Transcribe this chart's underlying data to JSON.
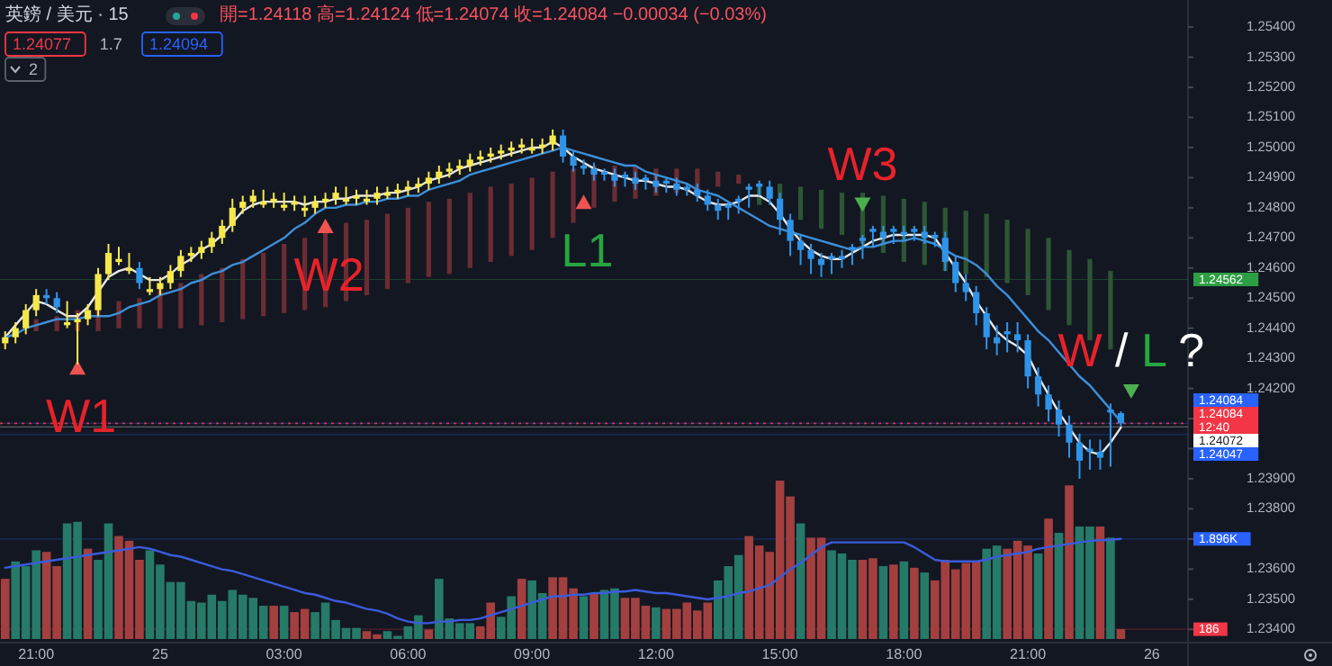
{
  "chart_data": {
    "type": "candlestick",
    "title": "英鎊 / 美元 · 15",
    "subtitle": "開=1.24118 高=1.24124 低=1.24074 收=1.24084 −0.00034 (−0.03%)",
    "categories": [
      null,
      null,
      null,
      "21:00",
      null,
      null,
      null,
      null,
      null,
      null,
      null,
      null,
      null,
      null,
      null,
      "25",
      null,
      null,
      null,
      null,
      null,
      null,
      null,
      null,
      null,
      null,
      null,
      "03:00",
      null,
      null,
      null,
      null,
      null,
      null,
      null,
      null,
      null,
      null,
      null,
      "06:00",
      null,
      null,
      null,
      null,
      null,
      null,
      null,
      null,
      null,
      null,
      null,
      "09:00",
      null,
      null,
      null,
      null,
      null,
      null,
      null,
      null,
      null,
      null,
      null,
      "12:00",
      null,
      null,
      null,
      null,
      null,
      null,
      null,
      null,
      null,
      null,
      null,
      "15:00",
      null,
      null,
      null,
      null,
      null,
      null,
      null,
      null,
      null,
      null,
      null,
      "18:00",
      null,
      null,
      null,
      null,
      null,
      null,
      null,
      null,
      null,
      null,
      null,
      "21:00",
      null,
      null,
      null,
      null,
      null,
      null,
      null,
      null,
      null,
      null,
      null,
      "26",
      null,
      null,
      null
    ],
    "ohlc": [
      [
        1.2435,
        1.2439,
        1.2433,
        1.2437
      ],
      [
        1.2437,
        1.2442,
        1.2435,
        1.244
      ],
      [
        1.244,
        1.2448,
        1.2438,
        1.2446
      ],
      [
        1.2446,
        1.2453,
        1.2444,
        1.2451
      ],
      [
        1.2451,
        1.2453,
        1.2448,
        1.245
      ],
      [
        1.245,
        1.2452,
        1.2445,
        1.2447
      ],
      [
        1.2441,
        1.2449,
        1.244,
        1.2442
      ],
      [
        1.2442,
        1.2445,
        1.2428,
        1.2443
      ],
      [
        1.2443,
        1.2448,
        1.2441,
        1.2446
      ],
      [
        1.2446,
        1.246,
        1.2444,
        1.2458
      ],
      [
        1.2458,
        1.2468,
        1.2456,
        1.2465
      ],
      [
        1.2462,
        1.2467,
        1.2461,
        1.2463
      ],
      [
        1.2459,
        1.2465,
        1.2458,
        1.246
      ],
      [
        1.246,
        1.2462,
        1.2453,
        1.2455
      ],
      [
        1.2452,
        1.2457,
        1.2451,
        1.2453
      ],
      [
        1.2453,
        1.2457,
        1.2451,
        1.2455
      ],
      [
        1.2455,
        1.2461,
        1.2453,
        1.2459
      ],
      [
        1.2459,
        1.2466,
        1.2457,
        1.2464
      ],
      [
        1.2464,
        1.2467,
        1.2462,
        1.2465
      ],
      [
        1.2465,
        1.2469,
        1.2463,
        1.2467
      ],
      [
        1.2467,
        1.2472,
        1.2465,
        1.247
      ],
      [
        1.247,
        1.2476,
        1.2468,
        1.2474
      ],
      [
        1.2474,
        1.2483,
        1.2472,
        1.248
      ],
      [
        1.248,
        1.2484,
        1.2478,
        1.2482
      ],
      [
        1.2482,
        1.2486,
        1.248,
        1.2484
      ],
      [
        1.2481,
        1.2486,
        1.248,
        1.2482
      ],
      [
        1.2482,
        1.2485,
        1.248,
        1.2483
      ],
      [
        1.248,
        1.2485,
        1.2479,
        1.2481
      ],
      [
        1.2481,
        1.2484,
        1.2479,
        1.2482
      ],
      [
        1.2479,
        1.2484,
        1.2477,
        1.248
      ],
      [
        1.248,
        1.2484,
        1.2478,
        1.2482
      ],
      [
        1.2482,
        1.2485,
        1.248,
        1.2483
      ],
      [
        1.2483,
        1.2487,
        1.2481,
        1.2485
      ],
      [
        1.2482,
        1.2487,
        1.2481,
        1.2483
      ],
      [
        1.2483,
        1.2486,
        1.2481,
        1.2484
      ],
      [
        1.2482,
        1.2486,
        1.2481,
        1.2483
      ],
      [
        1.2483,
        1.2487,
        1.2481,
        1.2485
      ],
      [
        1.2484,
        1.2487,
        1.2483,
        1.2485
      ],
      [
        1.2485,
        1.2488,
        1.2483,
        1.2486
      ],
      [
        1.2486,
        1.2489,
        1.2484,
        1.2487
      ],
      [
        1.2487,
        1.249,
        1.2485,
        1.2488
      ],
      [
        1.2488,
        1.2492,
        1.2486,
        1.249
      ],
      [
        1.249,
        1.2494,
        1.2488,
        1.2492
      ],
      [
        1.2492,
        1.2495,
        1.249,
        1.2493
      ],
      [
        1.2493,
        1.2496,
        1.2491,
        1.2494
      ],
      [
        1.2494,
        1.2498,
        1.2492,
        1.2496
      ],
      [
        1.2496,
        1.2499,
        1.2494,
        1.2497
      ],
      [
        1.2497,
        1.25,
        1.2495,
        1.2498
      ],
      [
        1.2498,
        1.2501,
        1.2496,
        1.2499
      ],
      [
        1.2499,
        1.2502,
        1.2497,
        1.25
      ],
      [
        1.25,
        1.2503,
        1.2498,
        1.2501
      ],
      [
        1.2499,
        1.2503,
        1.2498,
        1.25
      ],
      [
        1.25,
        1.2503,
        1.2498,
        1.2501
      ],
      [
        1.2501,
        1.2506,
        1.2499,
        1.2504
      ],
      [
        1.2504,
        1.2506,
        1.2495,
        1.2497
      ],
      [
        1.2497,
        1.2499,
        1.2492,
        1.2494
      ],
      [
        1.2494,
        1.2496,
        1.2491,
        1.2493
      ],
      [
        1.2493,
        1.2495,
        1.2489,
        1.2491
      ],
      [
        1.2492,
        1.2493,
        1.2489,
        1.2491
      ],
      [
        1.2491,
        1.2493,
        1.2487,
        1.2489
      ],
      [
        1.2491,
        1.2492,
        1.2487,
        1.249
      ],
      [
        1.249,
        1.2492,
        1.2486,
        1.2488
      ],
      [
        1.249,
        1.2491,
        1.2486,
        1.2489
      ],
      [
        1.2489,
        1.2491,
        1.2485,
        1.2487
      ],
      [
        1.2489,
        1.249,
        1.2485,
        1.2488
      ],
      [
        1.2488,
        1.249,
        1.2484,
        1.2486
      ],
      [
        1.2487,
        1.2488,
        1.2484,
        1.2486
      ],
      [
        1.2486,
        1.2488,
        1.2482,
        1.2484
      ],
      [
        1.2484,
        1.2486,
        1.2479,
        1.2481
      ],
      [
        1.2481,
        1.2483,
        1.2476,
        1.2479
      ],
      [
        1.2481,
        1.2482,
        1.2476,
        1.248
      ],
      [
        1.2483,
        1.2484,
        1.2478,
        1.2482
      ],
      [
        1.2487,
        1.2488,
        1.248,
        1.2486
      ],
      [
        1.2488,
        1.2489,
        1.2484,
        1.2487
      ],
      [
        1.2487,
        1.2489,
        1.2481,
        1.2483
      ],
      [
        1.2483,
        1.2485,
        1.2471,
        1.2476
      ],
      [
        1.2476,
        1.2478,
        1.2464,
        1.2469
      ],
      [
        1.2469,
        1.2471,
        1.2461,
        1.2466
      ],
      [
        1.2466,
        1.2468,
        1.2458,
        1.2463
      ],
      [
        1.2463,
        1.2465,
        1.2457,
        1.2461
      ],
      [
        1.2464,
        1.2465,
        1.2458,
        1.2463
      ],
      [
        1.2464,
        1.2466,
        1.246,
        1.2463
      ],
      [
        1.2467,
        1.2468,
        1.2461,
        1.2466
      ],
      [
        1.247,
        1.2471,
        1.2463,
        1.2469
      ],
      [
        1.2473,
        1.2474,
        1.2467,
        1.2472
      ],
      [
        1.2472,
        1.2474,
        1.2468,
        1.247
      ],
      [
        1.2473,
        1.2474,
        1.2468,
        1.2472
      ],
      [
        1.2472,
        1.2474,
        1.2469,
        1.2471
      ],
      [
        1.2473,
        1.2474,
        1.2469,
        1.2472
      ],
      [
        1.2472,
        1.2474,
        1.2468,
        1.247
      ],
      [
        1.2471,
        1.2472,
        1.2467,
        1.247
      ],
      [
        1.247,
        1.2472,
        1.2459,
        1.2462
      ],
      [
        1.2462,
        1.2464,
        1.2452,
        1.2455
      ],
      [
        1.2455,
        1.2458,
        1.2449,
        1.2452
      ],
      [
        1.2452,
        1.2454,
        1.2441,
        1.2445
      ],
      [
        1.2445,
        1.2447,
        1.2433,
        1.2437
      ],
      [
        1.2437,
        1.2441,
        1.2431,
        1.2435
      ],
      [
        1.2439,
        1.2442,
        1.2432,
        1.2438
      ],
      [
        1.2438,
        1.2442,
        1.2432,
        1.2436
      ],
      [
        1.2436,
        1.2438,
        1.242,
        1.2424
      ],
      [
        1.2424,
        1.2427,
        1.2414,
        1.2418
      ],
      [
        1.2418,
        1.2421,
        1.2409,
        1.2413
      ],
      [
        1.2413,
        1.2416,
        1.2404,
        1.2408
      ],
      [
        1.2408,
        1.2411,
        1.2397,
        1.2402
      ],
      [
        1.2402,
        1.2405,
        1.239,
        1.2396
      ],
      [
        1.24,
        1.2403,
        1.2393,
        1.2399
      ],
      [
        1.2399,
        1.2403,
        1.2393,
        1.2397
      ],
      [
        1.2413,
        1.2415,
        1.2394,
        1.2412
      ],
      [
        1.24118,
        1.24124,
        1.24074,
        1.24084
      ],
      null,
      null,
      null,
      null,
      null,
      null
    ],
    "colors": [
      "#f5e84c",
      "#f5e84c",
      "#f5e84c",
      "#f5e84c",
      "#2f94e8",
      "#2f94e8",
      "#f5e84c",
      "#f5e84c",
      "#f5e84c",
      "#f5e84c",
      "#f5e84c",
      "#f5e84c",
      "#f5e84c",
      "#2f94e8",
      "#f5e84c",
      "#f5e84c",
      "#f5e84c",
      "#f5e84c",
      "#f5e84c",
      "#f5e84c",
      "#f5e84c",
      "#f5e84c",
      "#f5e84c",
      "#f5e84c",
      "#f5e84c",
      "#f5e84c",
      "#f5e84c",
      "#f5e84c",
      "#f5e84c",
      "#f5e84c",
      "#f5e84c",
      "#f5e84c",
      "#f5e84c",
      "#f5e84c",
      "#f5e84c",
      "#f5e84c",
      "#f5e84c",
      "#f5e84c",
      "#f5e84c",
      "#f5e84c",
      "#f5e84c",
      "#f5e84c",
      "#f5e84c",
      "#f5e84c",
      "#f5e84c",
      "#f5e84c",
      "#f5e84c",
      "#f5e84c",
      "#f5e84c",
      "#f5e84c",
      "#f5e84c",
      "#f5e84c",
      "#f5e84c",
      "#f5e84c",
      "#2f94e8",
      "#2f94e8",
      "#2f94e8",
      "#2f94e8",
      "#2f94e8",
      "#2f94e8",
      "#2f94e8",
      "#2f94e8",
      "#2f94e8",
      "#2f94e8",
      "#2f94e8",
      "#2f94e8",
      "#2f94e8",
      "#2f94e8",
      "#2f94e8",
      "#2f94e8",
      "#2f94e8",
      "#2f94e8",
      "#2f94e8",
      "#2f94e8",
      "#2f94e8",
      "#2f94e8",
      "#2f94e8",
      "#2f94e8",
      "#2f94e8",
      "#2f94e8",
      "#2f94e8",
      "#2f94e8",
      "#2f94e8",
      "#2f94e8",
      "#2f94e8",
      "#2f94e8",
      "#2f94e8",
      "#2f94e8",
      "#2f94e8",
      "#2f94e8",
      "#2f94e8",
      "#2f94e8",
      "#2f94e8",
      "#2f94e8",
      "#2f94e8",
      "#2f94e8",
      "#2f94e8",
      "#2f94e8",
      "#2f94e8",
      "#2f94e8",
      "#2f94e8",
      "#2f94e8",
      "#2f94e8",
      "#2f94e8",
      "#2f94e8",
      "#2f94e8",
      "#2f94e8",
      "#2f94e8",
      "#2f94e8",
      null,
      null,
      null,
      null,
      null,
      null
    ],
    "series": [
      {
        "type": "bar",
        "axis": "y2",
        "values": [
          1140,
          1470,
          1380,
          1680,
          1650,
          1380,
          2190,
          2220,
          1710,
          1500,
          2190,
          1950,
          1860,
          1500,
          1680,
          1410,
          1080,
          1080,
          720,
          690,
          840,
          720,
          930,
          840,
          780,
          630,
          630,
          630,
          510,
          570,
          510,
          690,
          360,
          210,
          210,
          150,
          90,
          150,
          60,
          240,
          450,
          180,
          1140,
          390,
          300,
          300,
          240,
          690,
          420,
          810,
          1140,
          1110,
          870,
          1170,
          1170,
          960,
          810,
          870,
          930,
          960,
          780,
          780,
          630,
          600,
          570,
          570,
          690,
          540,
          690,
          1110,
          1380,
          1590,
          1950,
          1770,
          1650,
          3000,
          2700,
          2190,
          1920,
          1920,
          1680,
          1620,
          1500,
          1500,
          1530,
          1380,
          1410,
          1470,
          1350,
          1260,
          1110,
          1500,
          1320,
          1440,
          1470,
          1710,
          1770,
          1710,
          1860,
          1770,
          1620,
          2280,
          2010,
          2910,
          2130,
          2130,
          2130,
          1920,
          186,
          null,
          null,
          null,
          null,
          null,
          null
        ],
        "colors": [
          "#a3403f",
          "#267a68",
          "#267a68",
          "#267a68",
          "#a3403f",
          "#a3403f",
          "#267a68",
          "#267a68",
          "#a3403f",
          "#267a68",
          "#267a68",
          "#a3403f",
          "#a3403f",
          "#a3403f",
          "#267a68",
          "#267a68",
          "#267a68",
          "#267a68",
          "#267a68",
          "#267a68",
          "#267a68",
          "#267a68",
          "#267a68",
          "#267a68",
          "#267a68",
          "#267a68",
          "#a3403f",
          "#267a68",
          "#a3403f",
          "#a3403f",
          "#267a68",
          "#267a68",
          "#267a68",
          "#267a68",
          "#267a68",
          "#a3403f",
          "#a3403f",
          "#267a68",
          "#267a68",
          "#267a68",
          "#267a68",
          "#a3403f",
          "#267a68",
          "#267a68",
          "#267a68",
          "#267a68",
          "#a3403f",
          "#a3403f",
          "#267a68",
          "#267a68",
          "#a3403f",
          "#267a68",
          "#267a68",
          "#a3403f",
          "#a3403f",
          "#a3403f",
          "#267a68",
          "#a3403f",
          "#267a68",
          "#267a68",
          "#a3403f",
          "#a3403f",
          "#a3403f",
          "#267a68",
          "#a3403f",
          "#a3403f",
          "#a3403f",
          "#a3403f",
          "#a3403f",
          "#267a68",
          "#267a68",
          "#267a68",
          "#a3403f",
          "#a3403f",
          "#a3403f",
          "#a3403f",
          "#a3403f",
          "#267a68",
          "#a3403f",
          "#a3403f",
          "#267a68",
          "#267a68",
          "#267a68",
          "#a3403f",
          "#a3403f",
          "#267a68",
          "#a3403f",
          "#267a68",
          "#a3403f",
          "#267a68",
          "#a3403f",
          "#a3403f",
          "#a3403f",
          "#a3403f",
          "#a3403f",
          "#267a68",
          "#267a68",
          "#a3403f",
          "#a3403f",
          "#a3403f",
          "#267a68",
          "#a3403f",
          "#267a68",
          "#a3403f",
          "#267a68",
          "#267a68",
          "#a3403f",
          "#267a68",
          "#a3403f",
          null,
          null,
          null,
          null,
          null,
          null
        ]
      },
      {
        "type": "line",
        "axis": "y2",
        "color": "#3b5bdb",
        "values": [
          1350,
          1380,
          1410,
          1440,
          1470,
          1500,
          1530,
          1560,
          1590,
          1620,
          1650,
          1680,
          1710,
          1740,
          1710,
          1650,
          1590,
          1560,
          1500,
          1440,
          1380,
          1320,
          1290,
          1230,
          1170,
          1110,
          1050,
          990,
          930,
          870,
          840,
          780,
          720,
          690,
          630,
          570,
          540,
          480,
          390,
          330,
          300,
          300,
          330,
          330,
          360,
          360,
          390,
          450,
          510,
          570,
          630,
          690,
          750,
          810,
          810,
          840,
          840,
          870,
          870,
          900,
          900,
          930,
          900,
          870,
          870,
          840,
          810,
          780,
          750,
          780,
          810,
          870,
          900,
          960,
          1020,
          1170,
          1320,
          1440,
          1590,
          1740,
          1830,
          1830,
          1830,
          1830,
          1830,
          1830,
          1830,
          1830,
          1740,
          1620,
          1500,
          1470,
          1470,
          1470,
          1470,
          1500,
          1560,
          1590,
          1620,
          1650,
          1710,
          1740,
          1770,
          1800,
          1830,
          1860,
          1870,
          1880,
          1896,
          null,
          null,
          null,
          null,
          null,
          null
        ]
      },
      {
        "type": "bar",
        "base": [
          null,
          null,
          null,
          1.2439,
          null,
          1.2439,
          null,
          1.2439,
          null,
          1.2439,
          null,
          1.244,
          null,
          1.244,
          null,
          1.244,
          null,
          1.244,
          null,
          1.2441,
          null,
          1.2442,
          null,
          1.2443,
          null,
          1.2444,
          null,
          1.2445,
          null,
          1.2446,
          null,
          1.2447,
          null,
          1.2449,
          null,
          1.2451,
          null,
          1.2453,
          null,
          1.2455,
          null,
          1.2457,
          null,
          1.2458,
          null,
          1.246,
          null,
          1.2462,
          null,
          1.2464,
          null,
          1.2466,
          null,
          1.247,
          null,
          1.2475,
          null,
          1.248,
          null,
          1.2482,
          null,
          1.2483,
          null,
          1.2484,
          null,
          1.2485,
          null,
          1.2486,
          null,
          1.2487,
          null,
          1.2488,
          null,
          1.2481,
          null,
          1.2479,
          null,
          1.2476,
          null,
          1.2473,
          null,
          1.2471,
          null,
          1.2468,
          null,
          1.2465,
          null,
          1.2462,
          null,
          1.2461,
          null,
          1.2459,
          null,
          1.2458,
          null,
          1.2457,
          null,
          1.2455,
          null,
          1.2451,
          null,
          1.2446,
          null,
          1.2441,
          null,
          1.2436,
          null,
          1.2433,
          null,
          null,
          null,
          null,
          null,
          null,
          null
        ],
        "values": [
          null,
          null,
          null,
          0.0004,
          null,
          0.0005,
          null,
          0.0007,
          null,
          0.0008,
          null,
          0.0009,
          null,
          0.001,
          null,
          0.0013,
          null,
          0.0015,
          null,
          0.0017,
          null,
          0.0018,
          null,
          0.002,
          null,
          0.0021,
          null,
          0.0023,
          null,
          0.0024,
          null,
          0.0026,
          null,
          0.0026,
          null,
          0.0025,
          null,
          0.0025,
          null,
          0.0025,
          null,
          0.0025,
          null,
          0.0025,
          null,
          0.0025,
          null,
          0.0025,
          null,
          0.0024,
          null,
          0.0024,
          null,
          0.0022,
          null,
          0.0018,
          null,
          0.0014,
          null,
          0.0012,
          null,
          0.0011,
          null,
          0.0009,
          null,
          0.0008,
          null,
          0.0007,
          null,
          0.0005,
          null,
          0.0003,
          null,
          0.0007,
          null,
          0.0009,
          null,
          0.0011,
          null,
          0.0013,
          null,
          0.0014,
          null,
          0.0017,
          null,
          0.0019,
          null,
          0.0021,
          null,
          0.0021,
          null,
          0.0021,
          null,
          0.0021,
          null,
          0.0021,
          null,
          0.0021,
          null,
          0.0022,
          null,
          0.0024,
          null,
          0.0025,
          null,
          0.0027,
          null,
          0.0026,
          null,
          null,
          null,
          null,
          null,
          null,
          null
        ],
        "colors": [
          null,
          null,
          null,
          "#6b2c33",
          null,
          "#6b2c33",
          null,
          "#6b2c33",
          null,
          "#6b2c33",
          null,
          "#6b2c33",
          null,
          "#6b2c33",
          null,
          "#6b2c33",
          null,
          "#6b2c33",
          null,
          "#6b2c33",
          null,
          "#6b2c33",
          null,
          "#6b2c33",
          null,
          "#6b2c33",
          null,
          "#6b2c33",
          null,
          "#6b2c33",
          null,
          "#6b2c33",
          null,
          "#6b2c33",
          null,
          "#6b2c33",
          null,
          "#6b2c33",
          null,
          "#6b2c33",
          null,
          "#6b2c33",
          null,
          "#6b2c33",
          null,
          "#6b2c33",
          null,
          "#6b2c33",
          null,
          "#6b2c33",
          null,
          "#6b2c33",
          null,
          "#6b2c33",
          null,
          "#6b2c33",
          null,
          "#6b2c33",
          null,
          "#6b2c33",
          null,
          "#6b2c33",
          null,
          "#6b2c33",
          null,
          "#6b2c33",
          null,
          "#6b2c33",
          null,
          "#6b2c33",
          null,
          "#6b2c33",
          null,
          "#2d5634",
          null,
          "#2d5634",
          null,
          "#2d5634",
          null,
          "#2d5634",
          null,
          "#2d5634",
          null,
          "#2d5634",
          null,
          "#2d5634",
          null,
          "#2d5634",
          null,
          "#2d5634",
          null,
          "#2d5634",
          null,
          "#2d5634",
          null,
          "#2d5634",
          null,
          "#2d5634",
          null,
          "#2d5634",
          null,
          "#2d5634",
          null,
          "#2d5634",
          null,
          "#2d5634",
          null,
          "#2d5634",
          null,
          null,
          null,
          null,
          null,
          null,
          null
        ]
      },
      {
        "type": "line",
        "color": "#e8e8e8",
        "values": [
          1.2437,
          1.2441,
          1.2445,
          1.2449,
          1.2448,
          1.2446,
          1.2444,
          1.2444,
          1.2447,
          1.2452,
          1.2457,
          1.2459,
          1.246,
          1.2458,
          1.2456,
          1.2456,
          1.2458,
          1.2461,
          1.2463,
          1.2466,
          1.2468,
          1.2471,
          1.2475,
          1.2479,
          1.2481,
          1.2482,
          1.2482,
          1.2482,
          1.2482,
          1.2481,
          1.2482,
          1.2482,
          1.2483,
          1.2483,
          1.2484,
          1.2484,
          1.2484,
          1.2485,
          1.2485,
          1.2486,
          1.2487,
          1.2489,
          1.249,
          1.2491,
          1.2493,
          1.2494,
          1.2495,
          1.2496,
          1.2497,
          1.2498,
          1.2499,
          1.25,
          1.25,
          1.2502,
          1.25,
          1.2497,
          1.2495,
          1.2493,
          1.2492,
          1.2491,
          1.249,
          1.2489,
          1.2489,
          1.2488,
          1.2487,
          1.2487,
          1.2486,
          1.2484,
          1.2482,
          1.2481,
          1.2481,
          1.2482,
          1.2484,
          1.2484,
          1.2482,
          1.2478,
          1.2473,
          1.2469,
          1.2466,
          1.2464,
          1.2463,
          1.2463,
          1.2465,
          1.2467,
          1.2469,
          1.247,
          1.2471,
          1.2471,
          1.2471,
          1.2471,
          1.247,
          1.2465,
          1.246,
          1.2455,
          1.2449,
          1.2444,
          1.2439,
          1.2436,
          1.2434,
          1.2431,
          1.2424,
          1.2418,
          1.2412,
          1.2407,
          1.2402,
          1.2399,
          1.2398,
          1.2402,
          1.2407,
          null,
          null,
          null,
          null,
          null,
          null
        ]
      },
      {
        "type": "line",
        "color": "#3d8fd9",
        "values": [
          1.2437,
          1.2438,
          1.244,
          1.2441,
          1.2442,
          1.2443,
          1.2443,
          1.2443,
          1.2444,
          1.2444,
          1.2444,
          1.2445,
          1.2447,
          1.2448,
          1.2449,
          1.2451,
          1.2452,
          1.2453,
          1.2455,
          1.2456,
          1.2458,
          1.2459,
          1.2461,
          1.2462,
          1.2464,
          1.2466,
          1.2468,
          1.247,
          1.2473,
          1.2475,
          1.2478,
          1.248,
          1.248,
          1.2481,
          1.2481,
          1.2482,
          1.2482,
          1.2483,
          1.2483,
          1.2484,
          1.2484,
          1.2486,
          1.2487,
          1.2488,
          1.2489,
          1.2491,
          1.2492,
          1.2493,
          1.2494,
          1.2495,
          1.2496,
          1.2497,
          1.2498,
          1.2499,
          1.25,
          1.2499,
          1.2498,
          1.2497,
          1.2496,
          1.2495,
          1.2494,
          1.2494,
          1.2492,
          1.2491,
          1.249,
          1.2489,
          1.2488,
          1.2486,
          1.2485,
          1.2484,
          1.2482,
          1.248,
          1.2478,
          1.2476,
          1.2474,
          1.2473,
          1.2472,
          1.2471,
          1.247,
          1.2469,
          1.2468,
          1.2467,
          1.2466,
          1.2467,
          1.2467,
          1.2468,
          1.2469,
          1.2469,
          1.247,
          1.2469,
          1.2468,
          1.2466,
          1.2464,
          1.2463,
          1.2461,
          1.2458,
          1.2454,
          1.2451,
          1.2447,
          1.2443,
          1.2439,
          1.2436,
          1.2432,
          1.2428,
          1.2424,
          1.2421,
          1.2417,
          1.2413,
          1.2409,
          null,
          null,
          null,
          null,
          null,
          null
        ]
      },
      {
        "type": "scatter",
        "marker": "triangle",
        "color": "#f05252",
        "values": [
          null,
          null,
          null,
          null,
          null,
          null,
          null,
          1.2427,
          null,
          null,
          null,
          null,
          null,
          null,
          null,
          null,
          null,
          null,
          null,
          null,
          null,
          null,
          null,
          null,
          null,
          null,
          null,
          null,
          null,
          null,
          null,
          1.2474,
          null,
          null,
          null,
          null,
          null,
          null,
          null,
          null,
          null,
          null,
          null,
          null,
          null,
          null,
          null,
          null,
          null,
          null,
          null,
          null,
          null,
          null,
          null,
          null,
          1.2482,
          null,
          null,
          null,
          null,
          null,
          null,
          null,
          null,
          null,
          null,
          null,
          null,
          null,
          null,
          null,
          null,
          null,
          null,
          null,
          null,
          null,
          null,
          null,
          null,
          null,
          null,
          null,
          null,
          null,
          null,
          null,
          null,
          null,
          null,
          null,
          null,
          null,
          null,
          null,
          null,
          null,
          null,
          null,
          null,
          null,
          null,
          null,
          null,
          null,
          null,
          null,
          null,
          null,
          null,
          null,
          null,
          null,
          null
        ]
      },
      {
        "type": "scatter",
        "marker": "triangle-down",
        "color": "#4caf50",
        "values": [
          null,
          null,
          null,
          null,
          null,
          null,
          null,
          null,
          null,
          null,
          null,
          null,
          null,
          null,
          null,
          null,
          null,
          null,
          null,
          null,
          null,
          null,
          null,
          null,
          null,
          null,
          null,
          null,
          null,
          null,
          null,
          null,
          null,
          null,
          null,
          null,
          null,
          null,
          null,
          null,
          null,
          null,
          null,
          null,
          null,
          null,
          null,
          null,
          null,
          null,
          null,
          null,
          null,
          null,
          null,
          null,
          null,
          null,
          null,
          null,
          null,
          null,
          null,
          null,
          null,
          null,
          null,
          null,
          null,
          null,
          null,
          null,
          null,
          null,
          null,
          null,
          null,
          null,
          null,
          null,
          null,
          null,
          null,
          1.2481,
          null,
          null,
          null,
          null,
          null,
          null,
          null,
          null,
          null,
          null,
          null,
          null,
          null,
          null,
          null,
          null,
          null,
          null,
          null,
          null,
          null,
          null,
          null,
          null,
          null,
          1.2419,
          null,
          null,
          null,
          null,
          null
        ]
      }
    ],
    "ylim": [
      1.2335,
      1.2549
    ],
    "y2lim": [
      -102,
      12102
    ],
    "yticks": [
      {
        "value": 1.234,
        "label": "1.23400"
      },
      {
        "value": 1.235,
        "label": "1.23500"
      },
      {
        "value": 1.236,
        "label": "1.23600"
      },
      {
        "value": 1.237,
        "label": null
      },
      {
        "value": 1.238,
        "label": "1.23800"
      },
      {
        "value": 1.239,
        "label": "1.23900"
      },
      {
        "value": 1.24,
        "label": null
      },
      {
        "value": 1.241,
        "label": null
      },
      {
        "value": 1.242,
        "label": "1.24200"
      },
      {
        "value": 1.243,
        "label": "1.24300"
      },
      {
        "value": 1.244,
        "label": "1.24400"
      },
      {
        "value": 1.245,
        "label": "1.24500"
      },
      {
        "value": 1.246,
        "label": "1.24600"
      },
      {
        "value": 1.247,
        "label": "1.24700"
      },
      {
        "value": 1.248,
        "label": "1.24800"
      },
      {
        "value": 1.249,
        "label": "1.24900"
      },
      {
        "value": 1.25,
        "label": "1.25000"
      },
      {
        "value": 1.251,
        "label": "1.25100"
      },
      {
        "value": 1.252,
        "label": "1.25200"
      },
      {
        "value": 1.253,
        "label": "1.25300"
      },
      {
        "value": 1.254,
        "label": "1.25400"
      }
    ],
    "ref_lines": [
      {
        "axis": "y",
        "value": 1.24562,
        "label": "1.24562",
        "color": "#2e9e44"
      },
      {
        "axis": "y",
        "value": 1.24084,
        "label": "1.24084",
        "color": "#2962ff"
      },
      {
        "axis": "y",
        "value": 1.24084,
        "label": "1.24084\n12:40",
        "color": "#f23645",
        "line_style": "dotted"
      },
      {
        "axis": "y",
        "value": 1.24072,
        "label": "1.24072",
        "color": "#ffffff"
      },
      {
        "axis": "y",
        "value": 1.24047,
        "label": "1.24047",
        "color": "#2962ff"
      },
      {
        "axis": "y2",
        "value": 1896,
        "label": "1.896K",
        "color": "#2962ff"
      },
      {
        "axis": "y2",
        "value": 186,
        "label": "186",
        "color": "#f23645"
      }
    ],
    "annotations": [
      "W1",
      "W2",
      "L1",
      "W3",
      "W / L ?",
      "1.24077",
      "1.7",
      "1.24094",
      "2"
    ]
  }
}
